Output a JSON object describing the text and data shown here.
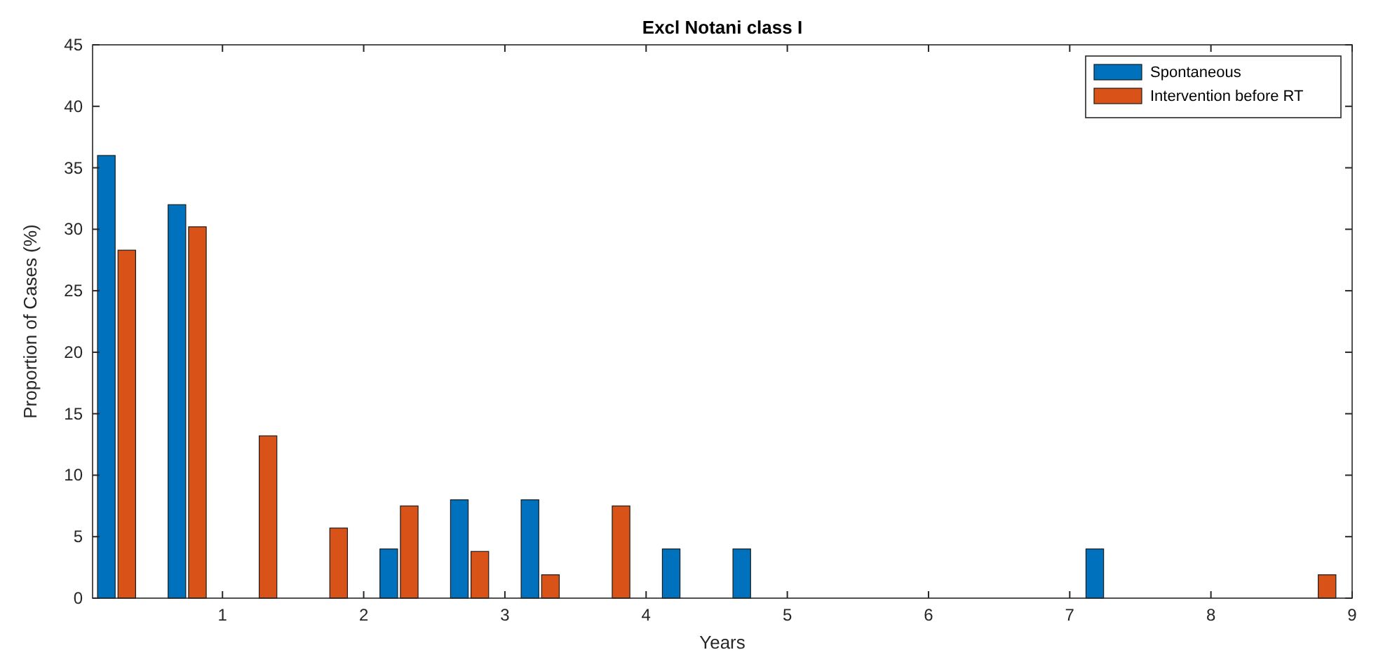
{
  "chart_data": {
    "type": "bar",
    "title": "Excl Notani class I",
    "xlabel": "Years",
    "ylabel": "Proportion of Cases (%)",
    "x": [
      0.25,
      0.75,
      1.25,
      1.75,
      2.25,
      2.75,
      3.25,
      3.75,
      4.25,
      4.75,
      5.25,
      5.75,
      6.25,
      6.75,
      7.25,
      7.75,
      8.25,
      8.75
    ],
    "series": [
      {
        "name": "Spontaneous",
        "color": "#0072bd",
        "values": [
          36,
          32,
          0,
          0,
          4,
          8,
          8,
          0,
          4,
          4,
          0,
          0,
          0,
          0,
          4,
          0,
          0,
          0
        ]
      },
      {
        "name": "Intervention before RT",
        "color": "#d95319",
        "values": [
          28.3,
          30.2,
          13.2,
          5.7,
          7.5,
          3.8,
          1.9,
          7.5,
          0,
          0,
          0,
          0,
          0,
          0,
          0,
          0,
          0,
          1.9
        ]
      }
    ],
    "xlim": [
      0.08,
      9
    ],
    "xticks": [
      1,
      2,
      3,
      4,
      5,
      6,
      7,
      8,
      9
    ],
    "ylim": [
      0,
      45
    ],
    "yticks": [
      0,
      5,
      10,
      15,
      20,
      25,
      30,
      35,
      40,
      45
    ],
    "grid": false,
    "legend": "top right"
  }
}
